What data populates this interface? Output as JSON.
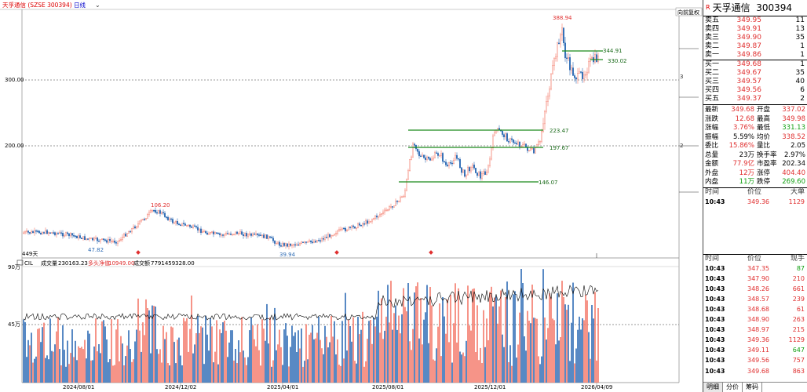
{
  "header": {
    "title": "天孚通信 (SZSE 300394)",
    "period": "日线",
    "arrow": "⌄"
  },
  "right_tag": "向前复权",
  "y_axis": {
    "left_ticks": [
      "300.00",
      "200.00"
    ],
    "right_tick_labels": [
      "3",
      "2"
    ],
    "days_label": "449天"
  },
  "price_labels": {
    "high": "388.94",
    "low1": "47.82",
    "mid1": "106.20",
    "low2": "39.94",
    "l1": "344.91",
    "l2": "330.02",
    "l3": "223.47",
    "l4": "197.67",
    "l5": "146.07"
  },
  "indicator": {
    "name": "CIL",
    "vol_label": "成交量",
    "vol": "230163.23",
    "mid_label": "多头净值",
    "mid": "10949.00",
    "amt_label": "成交额",
    "amt": "7791459328.00",
    "axis_hi": "90万",
    "axis_lo": "45万"
  },
  "x_dates": [
    "2024/08/01",
    "2024/12/02",
    "2025/04/01",
    "2025/08/01",
    "2025/12/01",
    "2026/04/09"
  ],
  "colors": {
    "up": "#f47a6a",
    "down": "#2f6cb5",
    "bar_up": "#f47a6a",
    "bar_down": "#2f6cb5",
    "line": "#000000",
    "hline": "#1a8a1a"
  },
  "panel": {
    "code_tag": "R",
    "name": "天孚通信",
    "code": "300394",
    "asks": [
      {
        "k": "卖五",
        "p": "349.95",
        "v": "11"
      },
      {
        "k": "卖四",
        "p": "349.91",
        "v": "13"
      },
      {
        "k": "卖三",
        "p": "349.90",
        "v": "35"
      },
      {
        "k": "卖二",
        "p": "349.87",
        "v": "1"
      },
      {
        "k": "卖一",
        "p": "349.86",
        "v": "1"
      }
    ],
    "bids": [
      {
        "k": "买一",
        "p": "349.68",
        "v": "1"
      },
      {
        "k": "买二",
        "p": "349.67",
        "v": "35"
      },
      {
        "k": "买三",
        "p": "349.57",
        "v": "40"
      },
      {
        "k": "买四",
        "p": "349.56",
        "v": "6"
      },
      {
        "k": "买五",
        "p": "349.37",
        "v": "2"
      }
    ],
    "stats": [
      {
        "k1": "最新",
        "v1": "349.68",
        "c1": "red",
        "k2": "开盘",
        "v2": "337.02",
        "c2": "red"
      },
      {
        "k1": "涨跌",
        "v1": "12.68",
        "c1": "red",
        "k2": "最高",
        "v2": "349.98",
        "c2": "red"
      },
      {
        "k1": "涨幅",
        "v1": "3.76%",
        "c1": "red",
        "k2": "最低",
        "v2": "331.13",
        "c2": "green"
      },
      {
        "k1": "振幅",
        "v1": "5.59%",
        "c1": "blk",
        "k2": "均价",
        "v2": "338.52",
        "c2": "red"
      },
      {
        "k1": "委比",
        "v1": "15.86%",
        "c1": "red",
        "k2": "量比",
        "v2": "2.05",
        "c2": "blk"
      },
      {
        "k1": "总量",
        "v1": "23万",
        "c1": "blk",
        "k2": "换手率",
        "v2": "2.97%",
        "c2": "blk"
      },
      {
        "k1": "金额",
        "v1": "77.9亿",
        "c1": "red",
        "k2": "市盈率",
        "v2": "202.34",
        "c2": "blk"
      },
      {
        "k1": "外盘",
        "v1": "12万",
        "c1": "red",
        "k2": "涨停",
        "v2": "404.40",
        "c2": "red"
      },
      {
        "k1": "内盘",
        "v1": "11万",
        "c1": "green",
        "k2": "跌停",
        "v2": "269.60",
        "c2": "green"
      }
    ],
    "big_header": {
      "h1": "时间",
      "h2": "价位",
      "h3": "大单"
    },
    "big_row": {
      "t": "10:43",
      "p": "349.36",
      "v": "1129"
    },
    "tick_header": {
      "h1": "时间",
      "h2": "价位",
      "h3": "现手"
    },
    "ticks": [
      {
        "t": "10:43",
        "p": "347.35",
        "v": "87",
        "c": "green"
      },
      {
        "t": "10:43",
        "p": "347.90",
        "v": "210",
        "c": "red"
      },
      {
        "t": "10:43",
        "p": "348.26",
        "v": "661",
        "c": "red"
      },
      {
        "t": "10:43",
        "p": "348.57",
        "v": "239",
        "c": "red"
      },
      {
        "t": "10:43",
        "p": "348.68",
        "v": "61",
        "c": "red"
      },
      {
        "t": "10:43",
        "p": "348.90",
        "v": "263",
        "c": "red"
      },
      {
        "t": "10:43",
        "p": "348.97",
        "v": "215",
        "c": "red"
      },
      {
        "t": "10:43",
        "p": "349.36",
        "v": "1129",
        "c": "red"
      },
      {
        "t": "10:43",
        "p": "349.11",
        "v": "647",
        "c": "green"
      },
      {
        "t": "10:43",
        "p": "349.56",
        "v": "757",
        "c": "red"
      },
      {
        "t": "10:43",
        "p": "349.68",
        "v": "863",
        "c": "red"
      }
    ],
    "tabs": [
      "明细",
      "分价",
      "筹码"
    ]
  }
}
